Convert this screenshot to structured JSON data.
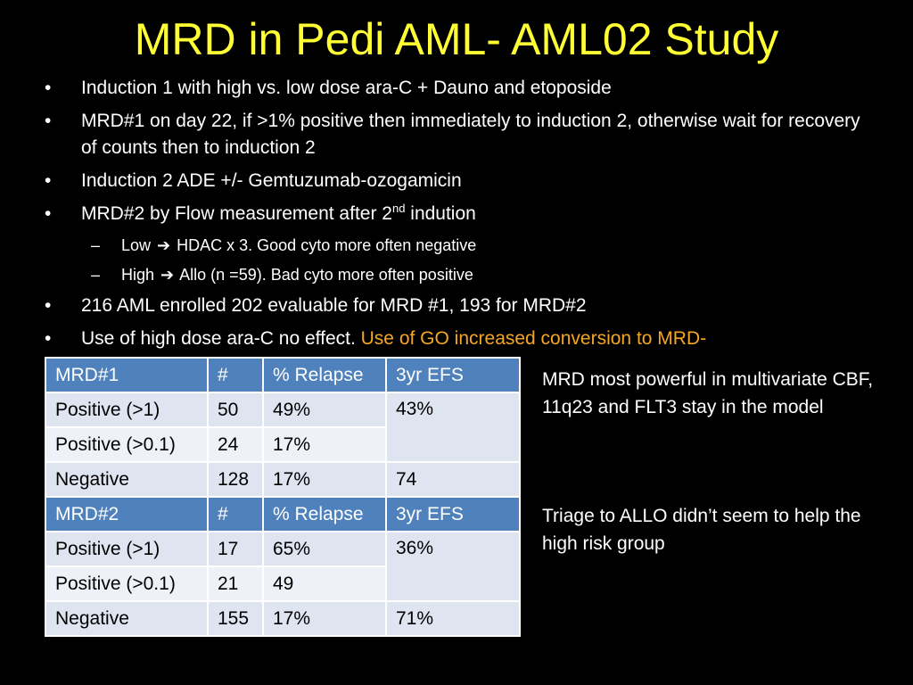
{
  "title": "MRD in Pedi AML- AML02 Study",
  "bullets": {
    "b1": "Induction 1  with high vs. low dose ara-C + Dauno and etoposide",
    "b2": "MRD#1 on day 22, if >1% positive then immediately to induction 2, otherwise wait for recovery of counts then to induction 2",
    "b3": "Induction 2 ADE +/- Gemtuzumab-ozogamicin",
    "b4_prefix": "MRD#2 by Flow measurement  after 2",
    "b4_sup": "nd",
    "b4_suffix": " indution",
    "sub1_a": "Low ",
    "sub1_b": "HDAC x 3. Good cyto more often negative",
    "sub2_a": "High",
    "sub2_b": "Allo (n =59). Bad cyto more often positive",
    "b5": "216 AML enrolled  202 evaluable for MRD #1, 193 for MRD#2",
    "b6_white": "Use of high dose ara-C no effect. ",
    "b6_orange": "Use of GO increased conversion to MRD-"
  },
  "table": {
    "headers1": [
      "MRD#1",
      "#",
      "% Relapse",
      "3yr EFS"
    ],
    "rows1": [
      [
        "Positive (>1)",
        "50",
        "49%",
        "43%"
      ],
      [
        "Positive (>0.1)",
        "24",
        "17%"
      ],
      [
        "Negative",
        "128",
        "17%",
        "74"
      ]
    ],
    "headers2": [
      "MRD#2",
      "#",
      "% Relapse",
      "3yr EFS"
    ],
    "rows2": [
      [
        "Positive (>1)",
        "17",
        "65%",
        "36%"
      ],
      [
        "Positive (>0.1)",
        "21",
        "49"
      ],
      [
        "Negative",
        "155",
        "17%",
        "71%"
      ]
    ]
  },
  "notes": {
    "note1": "MRD most powerful in multivariate CBF, 11q23 and FLT3 stay in the model",
    "note2": "Triage to  ALLO didn’t seem to help the high risk group"
  },
  "colors": {
    "title": "#ffff33",
    "accent_orange": "#f5a623",
    "table_header": "#4f81bd",
    "table_row_odd": "#dfe4f1",
    "table_row_even": "#eff1f8"
  }
}
